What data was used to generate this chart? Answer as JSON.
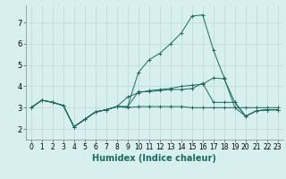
{
  "xlabel": "Humidex (Indice chaleur)",
  "x_values": [
    0,
    1,
    2,
    3,
    4,
    5,
    6,
    7,
    8,
    9,
    10,
    11,
    12,
    13,
    14,
    15,
    16,
    17,
    18,
    19,
    20,
    21,
    22,
    23
  ],
  "series": [
    [
      3.0,
      3.35,
      3.25,
      3.1,
      2.1,
      2.45,
      2.8,
      2.9,
      3.05,
      3.05,
      3.75,
      3.75,
      3.8,
      3.85,
      3.85,
      3.9,
      4.15,
      3.25,
      3.25,
      3.25,
      2.6,
      2.85,
      2.9,
      2.9
    ],
    [
      3.0,
      3.35,
      3.25,
      3.1,
      2.1,
      2.45,
      2.8,
      2.9,
      3.05,
      3.05,
      4.65,
      5.25,
      5.55,
      6.0,
      6.5,
      7.3,
      7.35,
      5.7,
      4.4,
      3.0,
      3.0,
      3.0,
      3.0,
      3.0
    ],
    [
      3.0,
      3.35,
      3.25,
      3.1,
      2.1,
      2.45,
      2.8,
      2.9,
      3.05,
      3.0,
      3.05,
      3.05,
      3.05,
      3.05,
      3.05,
      3.0,
      3.0,
      3.0,
      3.0,
      3.0,
      2.6,
      2.85,
      2.9,
      2.9
    ],
    [
      3.0,
      3.35,
      3.25,
      3.1,
      2.1,
      2.45,
      2.8,
      2.9,
      3.05,
      3.5,
      3.7,
      3.8,
      3.85,
      3.9,
      4.0,
      4.05,
      4.1,
      4.4,
      4.35,
      3.25,
      2.6,
      2.85,
      2.9,
      2.9
    ]
  ],
  "line_color": "#1a6b5c",
  "bg_color": "#d8eff0",
  "grid_color": "#b8d8da",
  "xlabel_fontsize": 7,
  "tick_fontsize": 5.5,
  "ylim": [
    1.5,
    7.8
  ],
  "yticks": [
    2,
    3,
    4,
    5,
    6,
    7
  ]
}
